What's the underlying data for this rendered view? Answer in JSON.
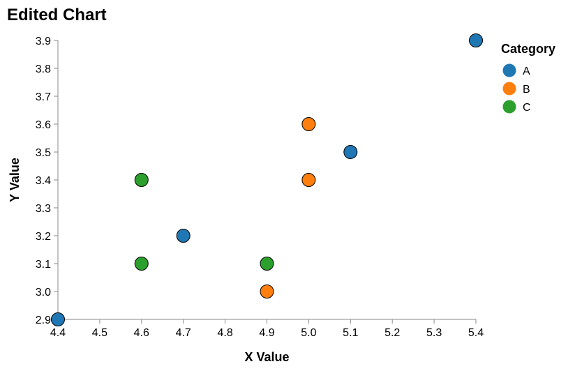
{
  "chart_data": {
    "type": "scatter",
    "title": "Edited Chart",
    "xlabel": "X Value",
    "ylabel": "Y Value",
    "xlim": [
      4.4,
      5.4
    ],
    "ylim": [
      2.9,
      3.9
    ],
    "x_ticks": [
      "4.4",
      "4.5",
      "4.6",
      "4.7",
      "4.8",
      "4.9",
      "5.0",
      "5.1",
      "5.2",
      "5.3",
      "5.4"
    ],
    "y_ticks": [
      "2.9",
      "3.0",
      "3.1",
      "3.2",
      "3.3",
      "3.4",
      "3.5",
      "3.6",
      "3.7",
      "3.8",
      "3.9"
    ],
    "grid": false,
    "legend": {
      "title": "Category",
      "placement": "top-right"
    },
    "series": [
      {
        "name": "A",
        "color": "#1f77b4",
        "points": [
          {
            "x": 4.4,
            "y": 2.9
          },
          {
            "x": 4.7,
            "y": 3.2
          },
          {
            "x": 5.1,
            "y": 3.5
          },
          {
            "x": 5.4,
            "y": 3.9
          }
        ]
      },
      {
        "name": "B",
        "color": "#ff7f0e",
        "points": [
          {
            "x": 4.9,
            "y": 3.0
          },
          {
            "x": 5.0,
            "y": 3.4
          },
          {
            "x": 5.0,
            "y": 3.6
          }
        ]
      },
      {
        "name": "C",
        "color": "#2ca02c",
        "points": [
          {
            "x": 4.6,
            "y": 3.1
          },
          {
            "x": 4.6,
            "y": 3.4
          },
          {
            "x": 4.9,
            "y": 3.1
          }
        ]
      }
    ]
  }
}
